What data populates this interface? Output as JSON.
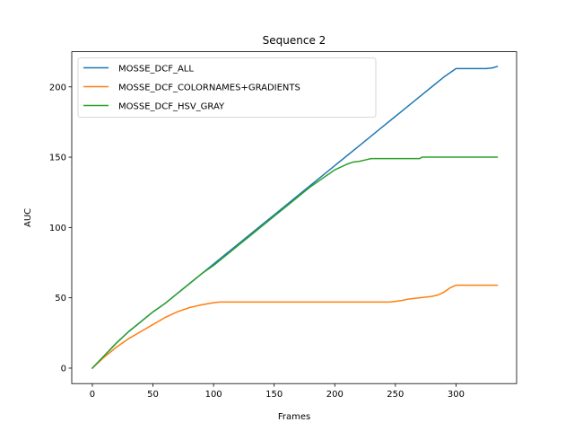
{
  "chart_data": {
    "type": "line",
    "title": "Sequence 2",
    "xlabel": "Frames",
    "ylabel": "AUC",
    "xlim": [
      -17,
      350
    ],
    "ylim": [
      -11,
      225
    ],
    "xticks": [
      0,
      50,
      100,
      150,
      200,
      250,
      300
    ],
    "yticks": [
      0,
      50,
      100,
      150,
      200
    ],
    "grid": false,
    "legend_position": "upper-left",
    "series": [
      {
        "name": "MOSSE_DCF_ALL",
        "color": "#1f77b4",
        "x": [
          0,
          10,
          20,
          30,
          40,
          50,
          60,
          70,
          80,
          90,
          100,
          110,
          120,
          130,
          140,
          150,
          160,
          170,
          180,
          190,
          200,
          210,
          220,
          230,
          240,
          250,
          260,
          270,
          280,
          290,
          300,
          310,
          320,
          325,
          330,
          334
        ],
        "y": [
          0,
          9,
          18,
          26,
          33,
          40,
          46,
          53,
          60,
          67,
          74,
          81,
          88,
          95,
          102,
          109,
          116,
          123,
          130,
          137,
          144,
          151,
          158,
          165,
          172,
          179,
          186,
          193,
          200,
          207,
          213,
          213,
          213,
          213,
          213.5,
          214.5
        ]
      },
      {
        "name": "MOSSE_DCF_COLORNAMES+GRADIENTS",
        "color": "#ff7f0e",
        "x": [
          0,
          10,
          20,
          30,
          40,
          50,
          60,
          70,
          80,
          85,
          90,
          100,
          105,
          120,
          150,
          200,
          240,
          245,
          250,
          255,
          260,
          270,
          275,
          280,
          285,
          290,
          295,
          300,
          310,
          320,
          334
        ],
        "y": [
          0,
          8,
          15,
          21,
          26,
          31,
          36,
          40,
          43,
          44,
          45,
          46.5,
          47,
          47,
          47,
          47,
          47,
          47,
          47.5,
          48,
          49,
          50,
          50.5,
          51,
          52,
          54,
          57,
          59,
          59,
          59,
          59
        ]
      },
      {
        "name": "MOSSE_DCF_HSV_GRAY",
        "color": "#2ca02c",
        "x": [
          0,
          10,
          20,
          30,
          40,
          50,
          60,
          70,
          80,
          90,
          100,
          110,
          120,
          130,
          140,
          150,
          160,
          170,
          180,
          190,
          195,
          200,
          205,
          210,
          215,
          220,
          225,
          230,
          240,
          250,
          260,
          270,
          272,
          280,
          290,
          300,
          310,
          320,
          334
        ],
        "y": [
          0,
          9,
          18,
          26,
          33,
          40,
          46,
          53,
          60,
          67,
          73,
          80,
          87,
          94,
          101,
          108,
          115,
          122,
          129,
          135,
          138,
          141,
          143,
          145,
          146.5,
          147,
          148,
          149,
          149,
          149,
          149,
          149,
          150,
          150,
          150,
          150,
          150,
          150,
          150
        ]
      }
    ]
  }
}
